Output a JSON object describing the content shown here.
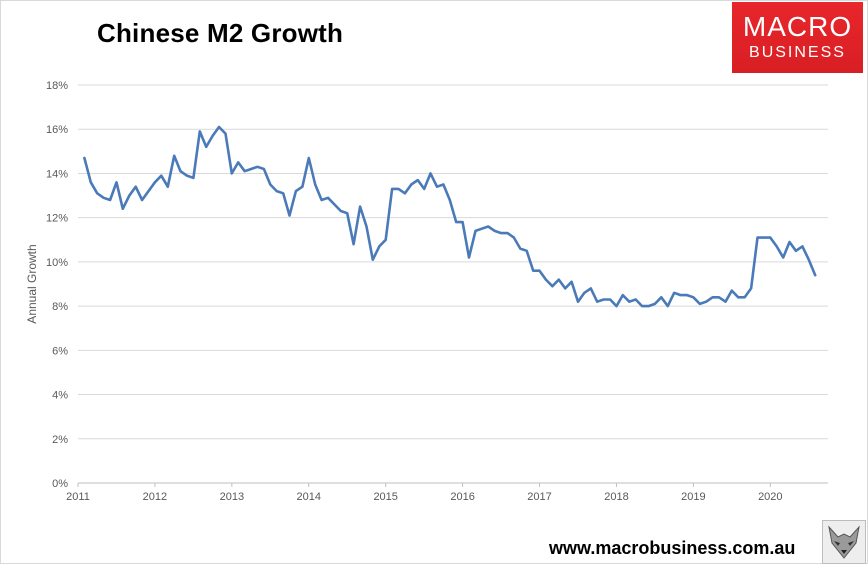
{
  "header": {
    "title": "Chinese M2 Growth"
  },
  "logo": {
    "line1": "MACRO",
    "line2": "BUSINESS",
    "color": "#e0232a"
  },
  "footer": {
    "website": "www.macrobusiness.com.au",
    "fox_icon": "fox-icon"
  },
  "chart_data": {
    "type": "line",
    "title": "Chinese M2 Growth",
    "xlabel": "",
    "ylabel": "Annual Growth",
    "xlim": [
      2011,
      2020.75
    ],
    "ylim": [
      0,
      18
    ],
    "x_ticks": [
      "2011",
      "2012",
      "2013",
      "2014",
      "2015",
      "2016",
      "2017",
      "2018",
      "2019",
      "2020"
    ],
    "y_ticks": [
      "0%",
      "2%",
      "4%",
      "6%",
      "8%",
      "10%",
      "12%",
      "14%",
      "16%",
      "18%"
    ],
    "grid": true,
    "legend": "none",
    "series_color": "#4a7ab8",
    "series": [
      {
        "values": [
          [
            2011.083,
            14.7
          ],
          [
            2011.167,
            13.6
          ],
          [
            2011.25,
            13.1
          ],
          [
            2011.333,
            12.9
          ],
          [
            2011.417,
            12.8
          ],
          [
            2011.5,
            13.6
          ],
          [
            2011.583,
            12.4
          ],
          [
            2011.667,
            13.0
          ],
          [
            2011.75,
            13.4
          ],
          [
            2011.833,
            12.8
          ],
          [
            2011.917,
            13.2
          ],
          [
            2012.0,
            13.6
          ],
          [
            2012.083,
            13.9
          ],
          [
            2012.167,
            13.4
          ],
          [
            2012.25,
            14.8
          ],
          [
            2012.333,
            14.1
          ],
          [
            2012.417,
            13.9
          ],
          [
            2012.5,
            13.8
          ],
          [
            2012.583,
            15.9
          ],
          [
            2012.667,
            15.2
          ],
          [
            2012.75,
            15.7
          ],
          [
            2012.833,
            16.1
          ],
          [
            2012.917,
            15.8
          ],
          [
            2013.0,
            14.0
          ],
          [
            2013.083,
            14.5
          ],
          [
            2013.167,
            14.1
          ],
          [
            2013.25,
            14.2
          ],
          [
            2013.333,
            14.3
          ],
          [
            2013.417,
            14.2
          ],
          [
            2013.5,
            13.5
          ],
          [
            2013.583,
            13.2
          ],
          [
            2013.667,
            13.1
          ],
          [
            2013.75,
            12.1
          ],
          [
            2013.833,
            13.2
          ],
          [
            2013.917,
            13.4
          ],
          [
            2014.0,
            14.7
          ],
          [
            2014.083,
            13.5
          ],
          [
            2014.167,
            12.8
          ],
          [
            2014.25,
            12.9
          ],
          [
            2014.333,
            12.6
          ],
          [
            2014.417,
            12.3
          ],
          [
            2014.5,
            12.2
          ],
          [
            2014.583,
            10.8
          ],
          [
            2014.667,
            12.5
          ],
          [
            2014.75,
            11.6
          ],
          [
            2014.833,
            10.1
          ],
          [
            2014.917,
            10.7
          ],
          [
            2015.0,
            11.0
          ],
          [
            2015.083,
            13.3
          ],
          [
            2015.167,
            13.3
          ],
          [
            2015.25,
            13.1
          ],
          [
            2015.333,
            13.5
          ],
          [
            2015.417,
            13.7
          ],
          [
            2015.5,
            13.3
          ],
          [
            2015.583,
            14.0
          ],
          [
            2015.667,
            13.4
          ],
          [
            2015.75,
            13.5
          ],
          [
            2015.833,
            12.8
          ],
          [
            2015.917,
            11.8
          ],
          [
            2016.0,
            11.8
          ],
          [
            2016.083,
            10.2
          ],
          [
            2016.167,
            11.4
          ],
          [
            2016.25,
            11.5
          ],
          [
            2016.333,
            11.6
          ],
          [
            2016.417,
            11.4
          ],
          [
            2016.5,
            11.3
          ],
          [
            2016.583,
            11.3
          ],
          [
            2016.667,
            11.1
          ],
          [
            2016.75,
            10.6
          ],
          [
            2016.833,
            10.5
          ],
          [
            2016.917,
            9.6
          ],
          [
            2017.0,
            9.6
          ],
          [
            2017.083,
            9.2
          ],
          [
            2017.167,
            8.9
          ],
          [
            2017.25,
            9.2
          ],
          [
            2017.333,
            8.8
          ],
          [
            2017.417,
            9.1
          ],
          [
            2017.5,
            8.2
          ],
          [
            2017.583,
            8.6
          ],
          [
            2017.667,
            8.8
          ],
          [
            2017.75,
            8.2
          ],
          [
            2017.833,
            8.3
          ],
          [
            2017.917,
            8.3
          ],
          [
            2018.0,
            8.0
          ],
          [
            2018.083,
            8.5
          ],
          [
            2018.167,
            8.2
          ],
          [
            2018.25,
            8.3
          ],
          [
            2018.333,
            8.0
          ],
          [
            2018.417,
            8.0
          ],
          [
            2018.5,
            8.1
          ],
          [
            2018.583,
            8.4
          ],
          [
            2018.667,
            8.0
          ],
          [
            2018.75,
            8.6
          ],
          [
            2018.833,
            8.5
          ],
          [
            2018.917,
            8.5
          ],
          [
            2019.0,
            8.4
          ],
          [
            2019.083,
            8.1
          ],
          [
            2019.167,
            8.2
          ],
          [
            2019.25,
            8.4
          ],
          [
            2019.333,
            8.4
          ],
          [
            2019.417,
            8.2
          ],
          [
            2019.5,
            8.7
          ],
          [
            2019.583,
            8.4
          ],
          [
            2019.667,
            8.4
          ],
          [
            2019.75,
            8.8
          ],
          [
            2019.833,
            11.1
          ],
          [
            2019.917,
            11.1
          ],
          [
            2020.0,
            11.1
          ],
          [
            2020.083,
            10.7
          ],
          [
            2020.167,
            10.2
          ],
          [
            2020.25,
            10.9
          ],
          [
            2020.333,
            10.5
          ],
          [
            2020.417,
            10.7
          ],
          [
            2020.5,
            10.1
          ],
          [
            2020.583,
            9.4
          ]
        ]
      }
    ]
  }
}
